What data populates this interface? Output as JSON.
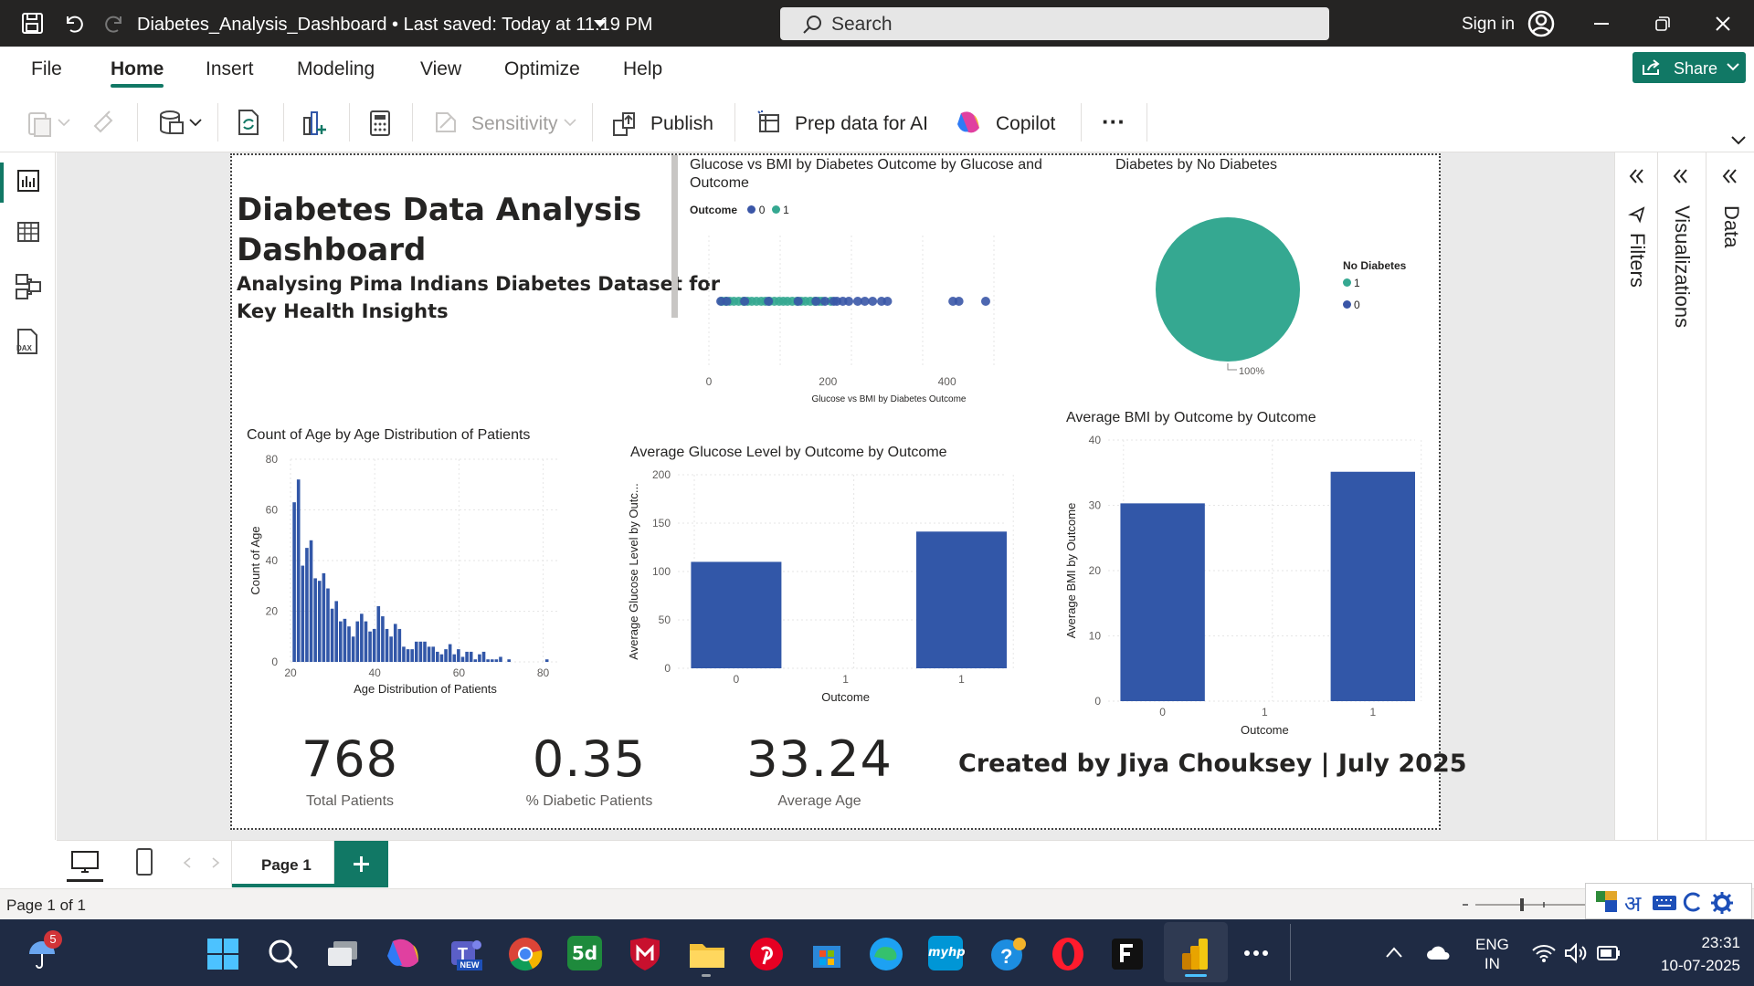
{
  "window": {
    "title": "Diabetes_Analysis_Dashboard • Last saved: Today at 11:19 PM",
    "search_placeholder": "Search",
    "sign_in": "Sign in"
  },
  "menu": [
    "File",
    "Home",
    "Insert",
    "Modeling",
    "View",
    "Optimize",
    "Help"
  ],
  "share_label": "Share",
  "toolbar": {
    "sensitivity": "Sensitivity",
    "publish": "Publish",
    "prep_ai": "Prep data for AI",
    "copilot": "Copilot",
    "more": "···"
  },
  "right_panes": {
    "filters": "Filters",
    "visualizations": "Visualizations",
    "data": "Data"
  },
  "dashboard": {
    "title_line1": "Diabetes Data Analysis",
    "title_line2": "Dashboard",
    "subtitle_line1": "Analysing Pima Indians Diabetes Dataset for",
    "subtitle_line2": "Key Health Insights",
    "credit": "Created by Jiya Chouksey | July 2025"
  },
  "kpis": [
    {
      "value": "768",
      "label": "Total Patients"
    },
    {
      "value": "0.35",
      "label": "% Diabetic Patients"
    },
    {
      "value": "33.24",
      "label": "Average Age"
    }
  ],
  "colors": {
    "outcome0": "#3a56a7",
    "outcome1": "#35a891",
    "bar": "#3257a8",
    "accent": "#117865"
  },
  "chart_data": [
    {
      "type": "scatter",
      "title_line1": "Glucose vs BMI by Diabetes Outcome by Glucose and",
      "title_line2": "Outcome",
      "legend_title": "Outcome",
      "legend": [
        "0",
        "1"
      ],
      "xlabel": "Glucose vs BMI by Diabetes Outcome",
      "xticks": [
        "0",
        "200",
        "400"
      ],
      "xlim": [
        0,
        480
      ],
      "series": [
        {
          "name": "1",
          "x": [
            22,
            28,
            35,
            42,
            50,
            58,
            65,
            72,
            80,
            88,
            95,
            102,
            110,
            118,
            125,
            132,
            140,
            148,
            155,
            162,
            170,
            178,
            185,
            190,
            205
          ]
        },
        {
          "name": "0",
          "x": [
            20,
            30,
            60,
            100,
            150,
            180,
            195,
            210,
            215,
            225,
            235,
            250,
            262,
            275,
            290,
            300,
            410,
            420,
            465
          ]
        }
      ]
    },
    {
      "type": "pie",
      "title": "Diabetes by No Diabetes",
      "legend_title": "No Diabetes",
      "labels": [
        "1",
        "0"
      ],
      "values": [
        100,
        0
      ],
      "data_label": "100%"
    },
    {
      "type": "bar",
      "title": "Count of Age by Age Distribution of Patients",
      "xlabel": "Age Distribution of Patients",
      "ylabel": "Count of Age",
      "yticks": [
        "0",
        "20",
        "40",
        "60",
        "80"
      ],
      "ylim": [
        0,
        80
      ],
      "xticks": [
        "20",
        "40",
        "60",
        "80"
      ],
      "xlim": [
        20,
        84
      ],
      "x": [
        21,
        22,
        23,
        24,
        25,
        26,
        27,
        28,
        29,
        30,
        31,
        32,
        33,
        34,
        35,
        36,
        37,
        38,
        39,
        40,
        41,
        42,
        43,
        44,
        45,
        46,
        47,
        48,
        49,
        50,
        51,
        52,
        53,
        54,
        55,
        56,
        57,
        58,
        59,
        60,
        61,
        62,
        63,
        64,
        65,
        66,
        67,
        68,
        69,
        70,
        72,
        81
      ],
      "values": [
        63,
        72,
        38,
        45,
        48,
        33,
        32,
        35,
        29,
        21,
        24,
        16,
        17,
        14,
        10,
        16,
        19,
        16,
        12,
        13,
        22,
        18,
        13,
        10,
        15,
        13,
        6,
        5,
        5,
        8,
        8,
        8,
        6,
        6,
        4,
        3,
        5,
        7,
        3,
        5,
        2,
        4,
        4,
        1,
        3,
        4,
        1,
        1,
        1,
        2,
        1,
        1
      ]
    },
    {
      "type": "bar",
      "title": "Average Glucose Level by Outcome by Outcome",
      "xlabel": "Outcome",
      "ylabel": "Average Glucose Level by Outc...",
      "yticks": [
        "0",
        "50",
        "100",
        "150",
        "200"
      ],
      "ylim": [
        0,
        200
      ],
      "categories": [
        "0",
        "1"
      ],
      "axis_ticks": [
        "0",
        "1",
        "1"
      ],
      "values": [
        109.98,
        141.26
      ]
    },
    {
      "type": "bar",
      "title": "Average BMI by Outcome by Outcome",
      "xlabel": "Outcome",
      "ylabel": "Average BMI by Outcome",
      "yticks": [
        "0",
        "10",
        "20",
        "30",
        "40"
      ],
      "ylim": [
        0,
        40
      ],
      "categories": [
        "0",
        "1"
      ],
      "axis_ticks": [
        "0",
        "1",
        "1"
      ],
      "values": [
        30.3,
        35.14
      ]
    }
  ],
  "pagebar": {
    "page_tab": "Page 1"
  },
  "status": {
    "page_count": "Page 1 of 1",
    "ime": "अ"
  },
  "taskbar": {
    "weather_badge": "5",
    "lang_line1": "ENG",
    "lang_line2": "IN",
    "time": "23:31",
    "date": "10-07-2025",
    "new_badge": "NEW",
    "myhp": "myhp"
  }
}
